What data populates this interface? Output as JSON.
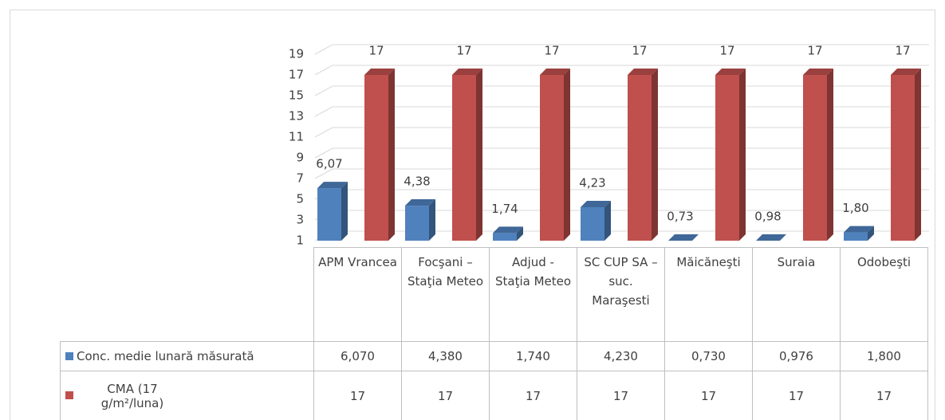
{
  "chart_data": {
    "type": "bar3d",
    "categories": [
      "APM Vrancea",
      "Focşani – Staţia Meteo",
      "Adjud - Staţia Meteo",
      "SC CUP SA –suc. Maraşesti",
      "Măicăneşti",
      "Suraia",
      "Odobeşti"
    ],
    "series": [
      {
        "name": "Conc. medie lunară măsurată",
        "color": "#4f81bd",
        "values": [
          6.07,
          4.38,
          1.74,
          4.23,
          0.73,
          0.976,
          1.8
        ],
        "value_labels": [
          "6,07",
          "4,38",
          "1,74",
          "4,23",
          "0,73",
          "0,98",
          "1,80"
        ],
        "table_labels": [
          "6,070",
          "4,380",
          "1,740",
          "4,230",
          "0,730",
          "0,976",
          "1,800"
        ]
      },
      {
        "name": "CMA (17 g/m²/luna)",
        "color": "#c0504d",
        "values": [
          17,
          17,
          17,
          17,
          17,
          17,
          17
        ]
      }
    ],
    "ylim": [
      1,
      19
    ],
    "yticks": [
      1,
      3,
      5,
      7,
      9,
      11,
      13,
      15,
      17,
      19
    ],
    "grid": true
  }
}
